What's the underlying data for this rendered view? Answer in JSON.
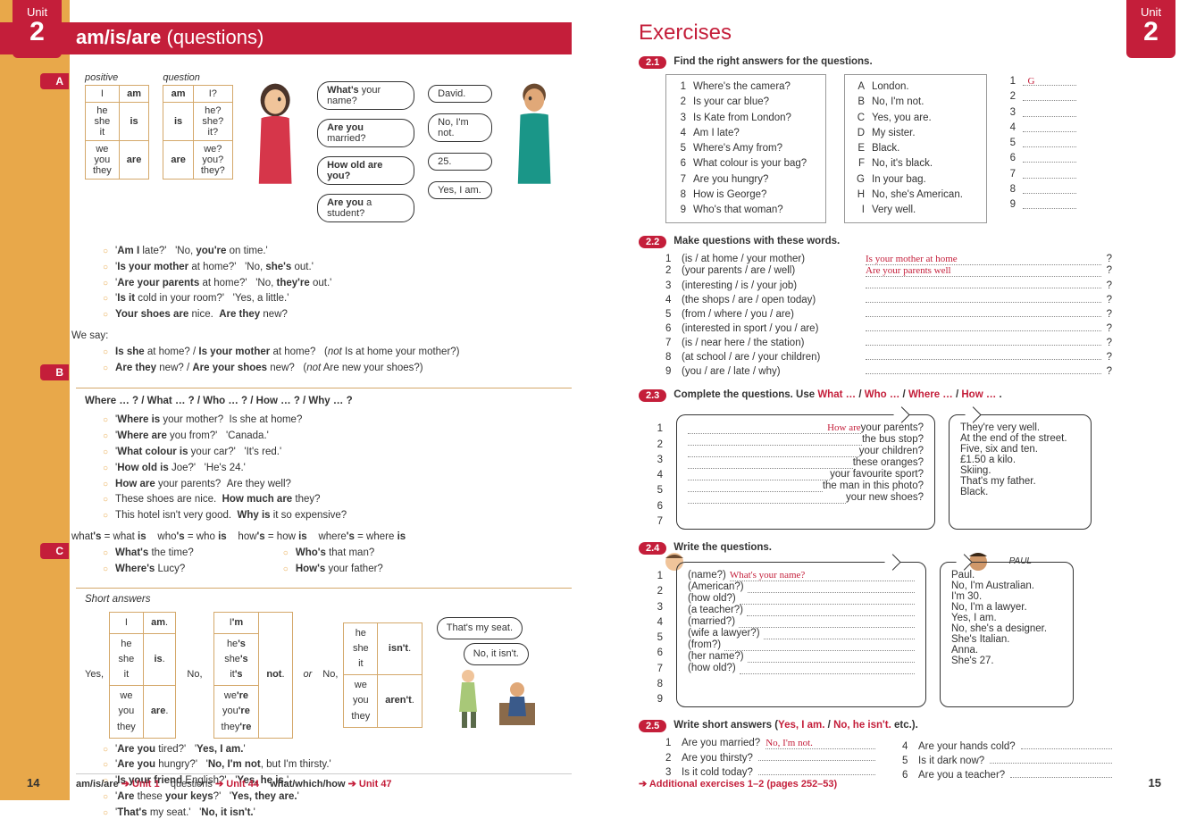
{
  "unit": {
    "label": "Unit",
    "number": "2"
  },
  "leftPage": {
    "title_bold": "am/is/are",
    "title_rest": " (questions)",
    "sectionA": {
      "tab": "A",
      "posHeader": "positive",
      "qHeader": "question",
      "posTable": [
        [
          "I",
          "am"
        ],
        [
          "he\nshe\nit",
          "is"
        ],
        [
          "we\nyou\nthey",
          "are"
        ]
      ],
      "qTable": [
        [
          "am",
          "I?"
        ],
        [
          "is",
          "he?\nshe?\nit?"
        ],
        [
          "are",
          "we?\nyou?\nthey?"
        ]
      ],
      "bubblesL": [
        "What's your name?",
        "Are you married?",
        "How old are you?",
        "Are you a student?"
      ],
      "bubblesR": [
        "David.",
        "No, I'm not.",
        "25.",
        "Yes, I am."
      ],
      "examples": [
        [
          "'",
          "Am I",
          " late?'   'No, ",
          "you're",
          " on time.'"
        ],
        [
          "'",
          "Is your mother",
          " at home?'   'No, ",
          "she's",
          " out.'"
        ],
        [
          "'",
          "Are your parents",
          " at home?'   'No, ",
          "they're",
          " out.'"
        ],
        [
          "'",
          "Is it",
          " cold in your room?'   'Yes, a little.'",
          "",
          ""
        ],
        [
          "",
          "Your shoes are",
          " nice.  ",
          "Are they",
          " new?"
        ]
      ],
      "weSay": "We say:",
      "weSayLines": [
        [
          "Is she",
          " at home? / ",
          "Is your mother",
          " at home?   (not Is at home your mother?)"
        ],
        [
          "Are they",
          " new? / ",
          "Are your shoes",
          " new?   (not Are new your shoes?)"
        ]
      ]
    },
    "sectionB": {
      "tab": "B",
      "heading": "Where … ? / What … ? / Who … ? / How … ? / Why … ?",
      "lines": [
        [
          "'",
          "Where is",
          " your mother?  Is she at home?"
        ],
        [
          "'",
          "Where are",
          " you from?'   'Canada.'"
        ],
        [
          "'",
          "What colour is",
          " your car?'   'It's red.'"
        ],
        [
          "'",
          "How old is",
          " Joe?'   'He's 24.'"
        ],
        [
          "",
          "How are",
          " your parents?  Are they well?"
        ],
        [
          "These shoes are nice.  ",
          "How much are",
          " they?"
        ],
        [
          "This hotel isn't very good.  ",
          "Why is",
          " it so expensive?"
        ]
      ],
      "contractions": "what's = what is    who's = who is    how's = how is    where's = where is",
      "col1": [
        [
          "What's",
          " the time?"
        ],
        [
          "Where's",
          " Lucy?"
        ]
      ],
      "col2": [
        [
          "Who's",
          " that man?"
        ],
        [
          "How's",
          " your father?"
        ]
      ]
    },
    "sectionC": {
      "tab": "C",
      "heading": "Short answers",
      "yes": "Yes,",
      "no": "No,",
      "or": "or",
      "yesTable": [
        [
          "I",
          "am."
        ],
        [
          "he\nshe\nit",
          "is."
        ],
        [
          "we\nyou\nthey",
          "are."
        ]
      ],
      "no1Table": [
        [
          "I'm"
        ],
        [
          "he's\nshe's\nit's"
        ],
        [
          "we're\nyou're\nthey're"
        ]
      ],
      "no1Not": "not.",
      "no2Table": [
        [
          "he\nshe\nit",
          "isn't."
        ],
        [
          "we\nyou\nthey",
          "aren't."
        ]
      ],
      "no2Pre": "No,",
      "bubbles": [
        "That's my seat.",
        "No, it isn't."
      ],
      "lines": [
        [
          "'",
          "Are you",
          " tired?'   '",
          "Yes, I am.",
          "'"
        ],
        [
          "'",
          "Are you",
          " hungry?'   '",
          "No, I'm not",
          ", but I'm thirsty.'"
        ],
        [
          "'",
          "Is your friend",
          " English?'   '",
          "Yes, he is.",
          "'"
        ],
        [
          "'",
          "Are",
          " these ",
          "your keys",
          "?'   '",
          "Yes, they are.",
          "'"
        ],
        [
          "'",
          "That's",
          " my seat.'   '",
          "No, it isn't.",
          "'"
        ]
      ]
    },
    "footer": {
      "parts": [
        "am/is/are ",
        " Unit 1",
        "    questions ",
        " Unit 44",
        "    what/which/how ",
        " Unit 47"
      ],
      "arrow": "➔"
    },
    "pageNum": "14"
  },
  "rightPage": {
    "title": "Exercises",
    "ex21": {
      "tab": "2.1",
      "head": "Find the right answers for the questions.",
      "q": [
        "Where's the camera?",
        "Is your car blue?",
        "Is Kate from London?",
        "Am I late?",
        "Where's Amy from?",
        "What colour is your bag?",
        "Are you hungry?",
        "How is George?",
        "Who's that woman?"
      ],
      "a": [
        "London.",
        "No, I'm not.",
        "Yes, you are.",
        "My sister.",
        "Black.",
        "No, it's black.",
        "In your bag.",
        "No, she's American.",
        "Very well."
      ],
      "aLetters": [
        "A",
        "B",
        "C",
        "D",
        "E",
        "F",
        "G",
        "H",
        "I"
      ],
      "ans1": "G"
    },
    "ex22": {
      "tab": "2.2",
      "head": "Make questions with these words.",
      "rows": [
        {
          "n": "1",
          "p": "(is / at home / your mother)",
          "a": "Is your mother at home"
        },
        {
          "n": "2",
          "p": "(your parents / are / well)",
          "a": "Are your parents well"
        },
        {
          "n": "3",
          "p": "(interesting / is / your job)",
          "a": ""
        },
        {
          "n": "4",
          "p": "(the shops / are / open today)",
          "a": ""
        },
        {
          "n": "5",
          "p": "(from / where / you / are)",
          "a": ""
        },
        {
          "n": "6",
          "p": "(interested in sport / you / are)",
          "a": ""
        },
        {
          "n": "7",
          "p": "(is / near here / the station)",
          "a": ""
        },
        {
          "n": "8",
          "p": "(at school / are / your children)",
          "a": ""
        },
        {
          "n": "9",
          "p": "(you / are / late / why)",
          "a": ""
        }
      ]
    },
    "ex23": {
      "tab": "2.3",
      "head_pre": "Complete the questions.  Use ",
      "head_words": [
        "What …",
        " / ",
        "Who …",
        " / ",
        "Where …",
        " / ",
        "How …"
      ],
      "head_post": " .",
      "left": [
        {
          "n": "1",
          "a": "How are",
          "t": " your parents?"
        },
        {
          "n": "2",
          "a": "",
          "t": " the bus stop?"
        },
        {
          "n": "3",
          "a": "",
          "t": " your children?"
        },
        {
          "n": "4",
          "a": "",
          "t": " these oranges?"
        },
        {
          "n": "5",
          "a": "",
          "t": " your favourite sport?"
        },
        {
          "n": "6",
          "a": "",
          "t": " the man in this photo?"
        },
        {
          "n": "7",
          "a": "",
          "t": " your new shoes?"
        }
      ],
      "right": [
        "They're very well.",
        "At the end of the street.",
        "Five, six and ten.",
        "£1.50 a kilo.",
        "Skiing.",
        "That's my father.",
        "Black."
      ]
    },
    "ex24": {
      "tab": "2.4",
      "head": "Write the questions.",
      "paul": "PAUL",
      "left": [
        {
          "n": "1",
          "p": "(name?)",
          "a": "What's your name?"
        },
        {
          "n": "2",
          "p": "(American?)",
          "a": ""
        },
        {
          "n": "3",
          "p": "(how old?)",
          "a": ""
        },
        {
          "n": "4",
          "p": "(a teacher?)",
          "a": ""
        },
        {
          "n": "5",
          "p": "(married?)",
          "a": ""
        },
        {
          "n": "6",
          "p": "(wife a lawyer?)",
          "a": ""
        },
        {
          "n": "7",
          "p": "(from?)",
          "a": ""
        },
        {
          "n": "8",
          "p": "(her name?)",
          "a": ""
        },
        {
          "n": "9",
          "p": "(how old?)",
          "a": ""
        }
      ],
      "right": [
        "Paul.",
        "No, I'm Australian.",
        "I'm 30.",
        "No, I'm a lawyer.",
        "Yes, I am.",
        "No, she's a designer.",
        "She's Italian.",
        "Anna.",
        "She's 27."
      ]
    },
    "ex25": {
      "tab": "2.5",
      "head_pre": "Write short answers (",
      "head_yes": "Yes, I am.",
      "head_sep": " / ",
      "head_no": "No, he isn't.",
      "head_post": " etc.).",
      "left": [
        {
          "n": "1",
          "q": "Are you married?",
          "a": "No, I'm not."
        },
        {
          "n": "2",
          "q": "Are you thirsty?",
          "a": ""
        },
        {
          "n": "3",
          "q": "Is it cold today?",
          "a": ""
        }
      ],
      "right": [
        {
          "n": "4",
          "q": "Are your hands cold?",
          "a": ""
        },
        {
          "n": "5",
          "q": "Is it dark now?",
          "a": ""
        },
        {
          "n": "6",
          "q": "Are you a teacher?",
          "a": ""
        }
      ]
    },
    "footer": "➔ Additional exercises 1–2 (pages 252–53)",
    "pageNum": "15"
  }
}
